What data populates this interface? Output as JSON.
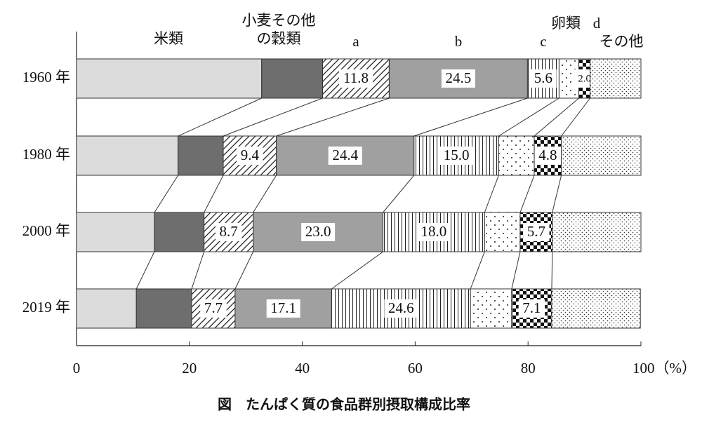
{
  "chart_data": {
    "type": "stacked-bar-horizontal",
    "title": "図　たんぱく質の食品群別摂取構成比率",
    "categories": [
      "1960 年",
      "1980 年",
      "2000 年",
      "2019 年"
    ],
    "series": [
      {
        "name": "米類",
        "color": "#dcdcdc",
        "values": [
          32.8,
          18.0,
          13.8,
          10.6
        ]
      },
      {
        "name": "小麦その他\nの穀類",
        "color": "#6e6e6e",
        "values": [
          10.8,
          8.0,
          8.8,
          9.8
        ]
      },
      {
        "name": "a",
        "color": "#ffffff",
        "values": [
          11.8,
          9.4,
          8.7,
          7.7
        ],
        "value_labels": [
          "11.8",
          "9.4",
          "8.7",
          "7.7"
        ]
      },
      {
        "name": "b",
        "color": "#a0a0a0",
        "values": [
          24.5,
          24.4,
          23.0,
          17.1
        ],
        "value_labels": [
          "24.5",
          "24.4",
          "23.0",
          "17.1"
        ]
      },
      {
        "name": "c",
        "color": "#ffffff",
        "values": [
          5.6,
          15.0,
          18.0,
          24.6
        ],
        "value_labels": [
          "5.6",
          "15.0",
          "18.0",
          "24.6"
        ]
      },
      {
        "name": "卵類",
        "color": "#ffffff",
        "values": [
          3.5,
          6.3,
          6.3,
          7.3
        ]
      },
      {
        "name": "d",
        "color": "#000000",
        "values": [
          2.0,
          4.8,
          5.7,
          7.1
        ],
        "value_labels": [
          "2.0",
          "4.8",
          "5.7",
          "7.1"
        ]
      },
      {
        "name": "その他",
        "color": "#ffffff",
        "values": [
          9.0,
          14.1,
          15.7,
          15.7
        ]
      }
    ],
    "xlim": [
      0,
      100
    ],
    "xticks": [
      0,
      20,
      40,
      60,
      80,
      {
        "value": 100,
        "label": "100（%）"
      }
    ]
  }
}
